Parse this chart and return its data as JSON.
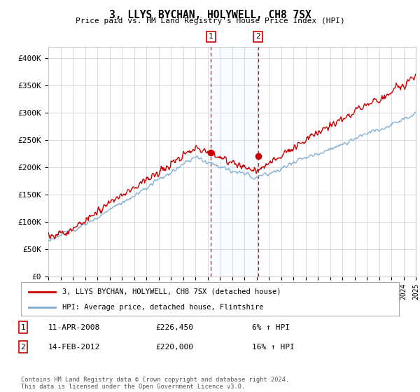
{
  "title": "3, LLYS BYCHAN, HOLYWELL, CH8 7SX",
  "subtitle": "Price paid vs. HM Land Registry's House Price Index (HPI)",
  "ylim": [
    0,
    420000
  ],
  "yticks": [
    0,
    50000,
    100000,
    150000,
    200000,
    250000,
    300000,
    350000,
    400000
  ],
  "ytick_labels": [
    "£0",
    "£50K",
    "£100K",
    "£150K",
    "£200K",
    "£250K",
    "£300K",
    "£350K",
    "£400K"
  ],
  "sale1_x": 2008.28,
  "sale1_y": 226450,
  "sale2_x": 2012.12,
  "sale2_y": 220000,
  "legend_property": "3, LLYS BYCHAN, HOLYWELL, CH8 7SX (detached house)",
  "legend_hpi": "HPI: Average price, detached house, Flintshire",
  "table_rows": [
    [
      "1",
      "11-APR-2008",
      "£226,450",
      "6% ↑ HPI"
    ],
    [
      "2",
      "14-FEB-2012",
      "£220,000",
      "16% ↑ HPI"
    ]
  ],
  "footer": "Contains HM Land Registry data © Crown copyright and database right 2024.\nThis data is licensed under the Open Government Licence v3.0.",
  "property_color": "#cc0000",
  "hpi_color": "#7aaad0",
  "shading_color": "#ddeeff",
  "grid_color": "#cccccc",
  "background_color": "#ffffff",
  "xlim_left": 1995,
  "xlim_right": 2025
}
